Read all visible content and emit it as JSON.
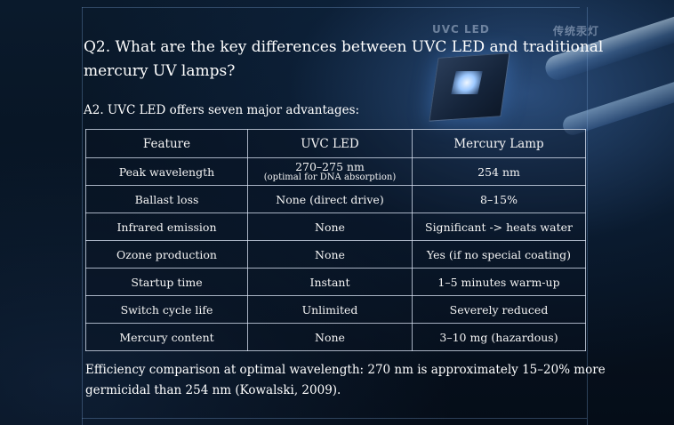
{
  "question": "Q2. What are the key differences between UVC LED and traditional mercury UV lamps?",
  "answer_intro": "A2. UVC LED offers seven major advantages:",
  "background": {
    "led_label": "UVC LED",
    "mercury_label": "传统汞灯"
  },
  "table": {
    "headers": [
      "Feature",
      "UVC LED",
      "Mercury Lamp"
    ],
    "rows": [
      {
        "feature": "Peak wavelength",
        "led": "270–275 nm",
        "led_note": "(optimal for DNA absorption)",
        "mercury": "254 nm"
      },
      {
        "feature": "Ballast loss",
        "led": "None (direct drive)",
        "mercury": "8–15%"
      },
      {
        "feature": "Infrared emission",
        "led": "None",
        "mercury": "Significant -> heats water"
      },
      {
        "feature": "Ozone production",
        "led": "None",
        "mercury": "Yes (if no special coating)"
      },
      {
        "feature": "Startup time",
        "led": "Instant",
        "mercury": "1–5 minutes warm-up"
      },
      {
        "feature": "Switch cycle life",
        "led": "Unlimited",
        "mercury": "Severely reduced"
      },
      {
        "feature": "Mercury content",
        "led": "None",
        "mercury": "3–10 mg (hazardous)"
      }
    ]
  },
  "footnote": "Efficiency comparison at optimal wavelength: 270 nm is approximately 15–20% more germicidal than 254 nm (Kowalski, 2009)."
}
